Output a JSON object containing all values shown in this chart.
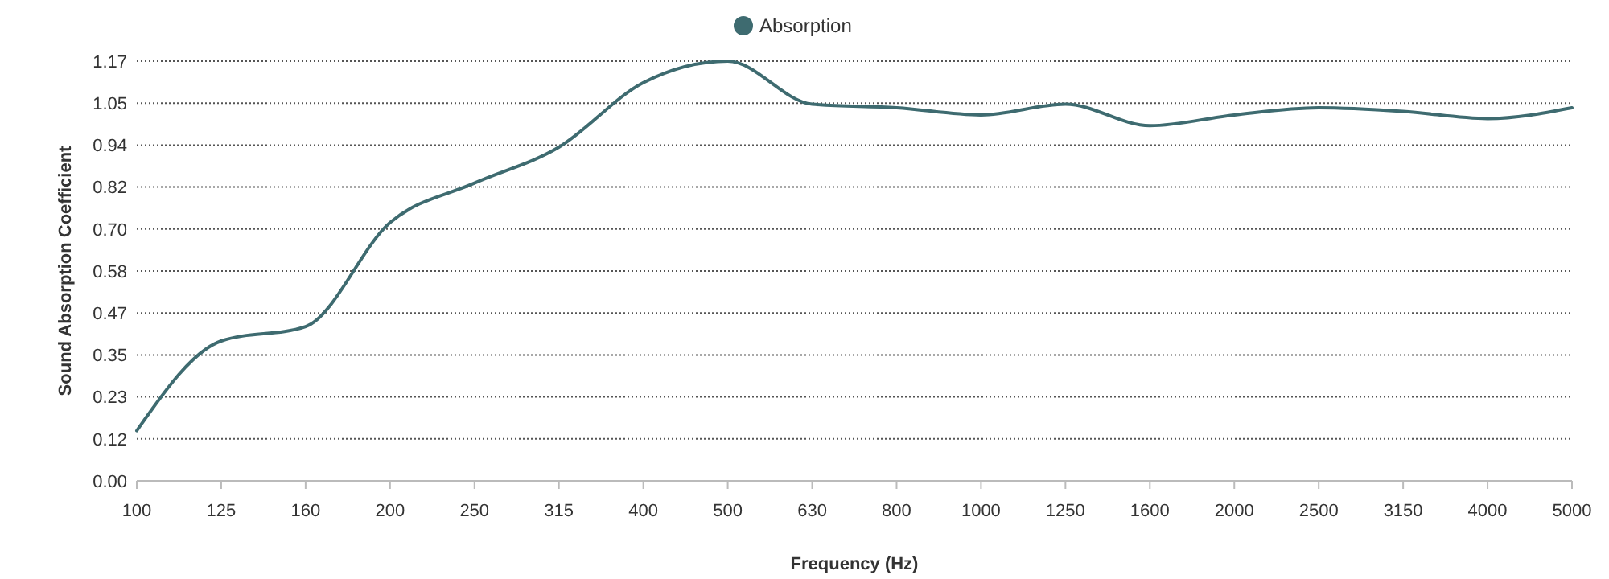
{
  "chart_data": {
    "type": "line",
    "xlabel": "Frequency (Hz)",
    "ylabel": "Sound Absorption Coefficient",
    "categories": [
      "100",
      "125",
      "160",
      "200",
      "250",
      "315",
      "400",
      "500",
      "630",
      "800",
      "1000",
      "1250",
      "1600",
      "2000",
      "2500",
      "3150",
      "4000",
      "5000"
    ],
    "series": [
      {
        "name": "Absorption",
        "color": "#3e6b70",
        "values": [
          0.14,
          0.39,
          0.43,
          0.72,
          0.83,
          0.93,
          1.11,
          1.17,
          1.05,
          1.04,
          1.02,
          1.05,
          0.99,
          1.02,
          1.04,
          1.03,
          1.01,
          1.04
        ]
      }
    ],
    "ylim": [
      0,
      1.17
    ],
    "yticks": [
      {
        "value": 0,
        "label": "0.00"
      },
      {
        "value": 0.117,
        "label": "0.12"
      },
      {
        "value": 0.234,
        "label": "0.23"
      },
      {
        "value": 0.351,
        "label": "0.35"
      },
      {
        "value": 0.468,
        "label": "0.47"
      },
      {
        "value": 0.585,
        "label": "0.58"
      },
      {
        "value": 0.702,
        "label": "0.70"
      },
      {
        "value": 0.819,
        "label": "0.82"
      },
      {
        "value": 0.936,
        "label": "0.94"
      },
      {
        "value": 1.053,
        "label": "1.05"
      },
      {
        "value": 1.17,
        "label": "1.17"
      }
    ],
    "grid": "y",
    "legend": "top",
    "marker": "none",
    "line_style": "solid"
  }
}
